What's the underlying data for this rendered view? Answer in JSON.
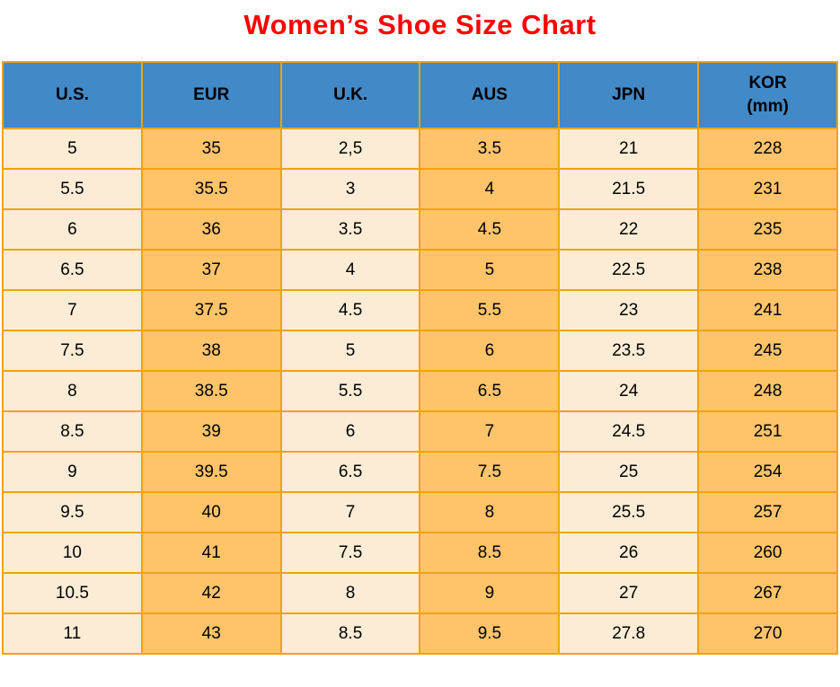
{
  "title": "Women’s Shoe Size Chart",
  "table": {
    "headers": [
      {
        "label": "U.S."
      },
      {
        "label": "EUR"
      },
      {
        "label": "U.K."
      },
      {
        "label": "AUS"
      },
      {
        "label": "JPN"
      },
      {
        "label": "KOR",
        "sub": "(mm)"
      }
    ]
  },
  "chart_data": {
    "type": "table",
    "title": "Women’s Shoe Size Chart",
    "columns": [
      "U.S.",
      "EUR",
      "U.K.",
      "AUS",
      "JPN",
      "KOR (mm)"
    ],
    "rows": [
      [
        "5",
        "35",
        "2,5",
        "3.5",
        "21",
        "228"
      ],
      [
        "5.5",
        "35.5",
        "3",
        "4",
        "21.5",
        "231"
      ],
      [
        "6",
        "36",
        "3.5",
        "4.5",
        "22",
        "235"
      ],
      [
        "6.5",
        "37",
        "4",
        "5",
        "22.5",
        "238"
      ],
      [
        "7",
        "37.5",
        "4.5",
        "5.5",
        "23",
        "241"
      ],
      [
        "7.5",
        "38",
        "5",
        "6",
        "23.5",
        "245"
      ],
      [
        "8",
        "38.5",
        "5.5",
        "6.5",
        "24",
        "248"
      ],
      [
        "8.5",
        "39",
        "6",
        "7",
        "24.5",
        "251"
      ],
      [
        "9",
        "39.5",
        "6.5",
        "7.5",
        "25",
        "254"
      ],
      [
        "9.5",
        "40",
        "7",
        "8",
        "25.5",
        "257"
      ],
      [
        "10",
        "41",
        "7.5",
        "8.5",
        "26",
        "260"
      ],
      [
        "10.5",
        "42",
        "8",
        "9",
        "27",
        "267"
      ],
      [
        "11",
        "43",
        "8.5",
        "9.5",
        "27.8",
        "270"
      ]
    ]
  },
  "colors": {
    "title": "#FF0000",
    "header_bg": "#4289C7",
    "border": "#F0A30A",
    "col_light": "#FCECD5",
    "col_orange": "#FFC469",
    "text": "#000000"
  }
}
